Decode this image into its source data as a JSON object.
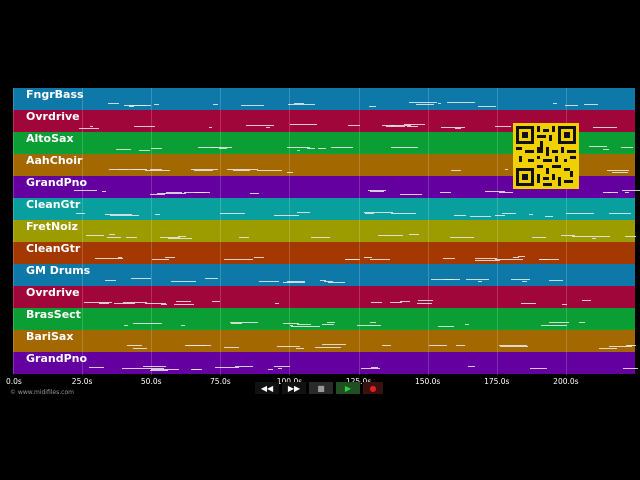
{
  "tracks": [
    {
      "name": "FngrBass",
      "color": "#0e79a8"
    },
    {
      "name": "Ovrdrive",
      "color": "#a1063a"
    },
    {
      "name": "AltoSax",
      "color": "#0b9e34"
    },
    {
      "name": "AahChoir",
      "color": "#a36900"
    },
    {
      "name": "GrandPno",
      "color": "#6500a0"
    },
    {
      "name": "CleanGtr",
      "color": "#089f9e"
    },
    {
      "name": "FretNoiz",
      "color": "#9c9c00"
    },
    {
      "name": "CleanGtr",
      "color": "#a33800"
    },
    {
      "name": "GM Drums",
      "color": "#0e79a8"
    },
    {
      "name": "Ovrdrive",
      "color": "#a1063a"
    },
    {
      "name": "BrasSect",
      "color": "#0b9e34"
    },
    {
      "name": "BariSax",
      "color": "#a36900"
    },
    {
      "name": "GrandPno",
      "color": "#6500a0"
    }
  ],
  "timeline": {
    "ticks": [
      "0.0s",
      "25.0s",
      "50.0s",
      "75.0s",
      "100.0s",
      "125.0s",
      "150.0s",
      "175.0s",
      "200.0s"
    ],
    "max_seconds": 225
  },
  "credit": "© www.midifiles.com",
  "transport": {
    "rewind": "◀◀",
    "forward": "▶▶",
    "stop": "■",
    "play": "▶",
    "record": "●"
  }
}
